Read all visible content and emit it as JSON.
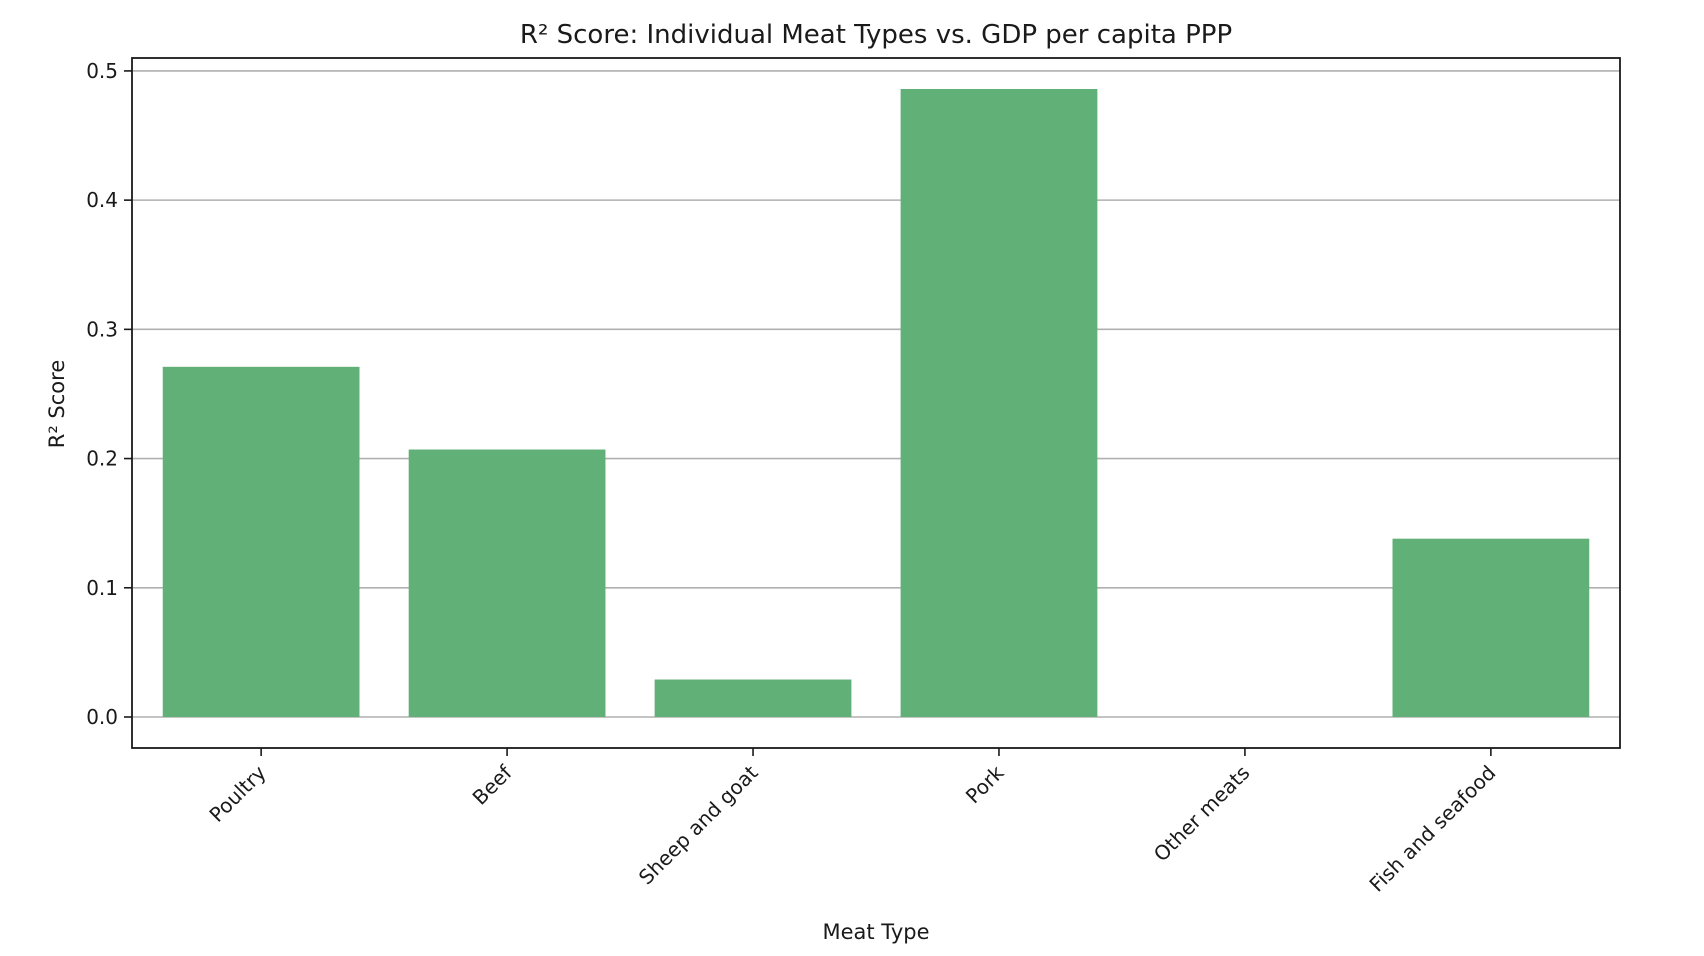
{
  "chart_data": {
    "type": "bar",
    "title": "R² Score: Individual Meat Types vs. GDP per capita PPP",
    "xlabel": "Meat Type",
    "ylabel": "R² Score",
    "categories": [
      "Poultry",
      "Beef",
      "Sheep and goat",
      "Pork",
      "Other meats",
      "Fish and seafood"
    ],
    "values": [
      0.271,
      0.207,
      0.029,
      0.486,
      0.0,
      0.138
    ],
    "ylim": [
      -0.024,
      0.51
    ],
    "yticks": [
      0.0,
      0.1,
      0.2,
      0.3,
      0.4,
      0.5
    ],
    "ytick_labels": [
      "0.0",
      "0.1",
      "0.2",
      "0.3",
      "0.4",
      "0.5"
    ],
    "grid": "y",
    "legend": "none",
    "bar_color": "#61b077"
  }
}
